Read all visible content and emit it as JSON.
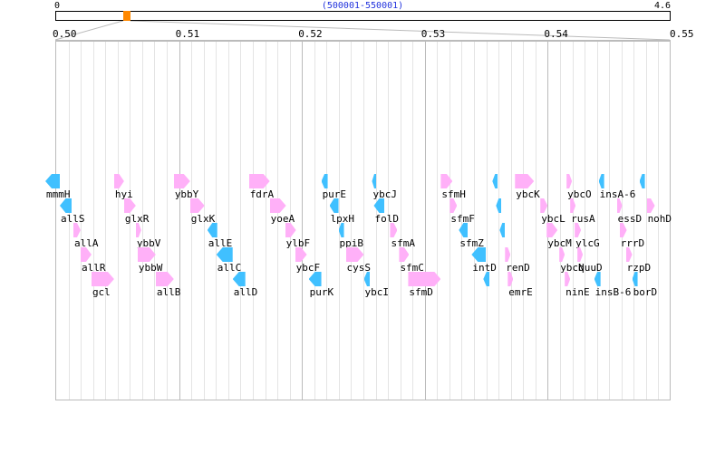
{
  "overview": {
    "start_label": "0",
    "end_label": "4.6",
    "range_label": "(500001-550001)",
    "genome_length_mb": 4.6,
    "view_start_bp": 500001,
    "view_end_bp": 550001
  },
  "scale": {
    "ticks": [
      "0.50",
      "0.51",
      "0.52",
      "0.53",
      "0.54",
      "0.55"
    ],
    "tick_values_mb": [
      0.5,
      0.51,
      0.52,
      0.53,
      0.54,
      0.55
    ]
  },
  "colors": {
    "forward": "#ffb0f8",
    "reverse": "#40c0ff",
    "marker": "#ff8800",
    "range_text": "#2233dd"
  },
  "genes": [
    {
      "label": "mmmH",
      "start": 499190,
      "end": 500368,
      "strand": "-",
      "row": 0
    },
    {
      "label": "allS",
      "start": 500368,
      "end": 501326,
      "strand": "-",
      "row": 1
    },
    {
      "label": "allA",
      "start": 501473,
      "end": 502062,
      "strand": "+",
      "row": 2
    },
    {
      "label": "allR",
      "start": 502062,
      "end": 502946,
      "strand": "+",
      "row": 3
    },
    {
      "label": "gcl",
      "start": 502946,
      "end": 504787,
      "strand": "+",
      "row": 4
    },
    {
      "label": "hyi",
      "start": 504787,
      "end": 505597,
      "strand": "+",
      "row": 0
    },
    {
      "label": "glxR",
      "start": 505597,
      "end": 506554,
      "strand": "+",
      "row": 1
    },
    {
      "label": "ybbV",
      "start": 506554,
      "end": 506996,
      "strand": "+",
      "row": 2
    },
    {
      "label": "ybbW",
      "start": 506701,
      "end": 508174,
      "strand": "+",
      "row": 3
    },
    {
      "label": "allB",
      "start": 508174,
      "end": 509647,
      "strand": "+",
      "row": 4
    },
    {
      "label": "ybbY",
      "start": 509647,
      "end": 510972,
      "strand": "+",
      "row": 0
    },
    {
      "label": "glxK",
      "start": 510972,
      "end": 512151,
      "strand": "+",
      "row": 1
    },
    {
      "label": "allE",
      "start": 512372,
      "end": 513182,
      "strand": "-",
      "row": 2
    },
    {
      "label": "allC",
      "start": 513108,
      "end": 514434,
      "strand": "-",
      "row": 3
    },
    {
      "label": "allD",
      "start": 514434,
      "end": 515464,
      "strand": "-",
      "row": 4
    },
    {
      "label": "fdrA",
      "start": 515759,
      "end": 517453,
      "strand": "+",
      "row": 0
    },
    {
      "label": "yoeA",
      "start": 517453,
      "end": 518778,
      "strand": "+",
      "row": 1
    },
    {
      "label": "ylbF",
      "start": 518705,
      "end": 519588,
      "strand": "+",
      "row": 2
    },
    {
      "label": "ybcF",
      "start": 519515,
      "end": 520472,
      "strand": "+",
      "row": 3
    },
    {
      "label": "purK",
      "start": 520619,
      "end": 521650,
      "strand": "-",
      "row": 4
    },
    {
      "label": "purE",
      "start": 521650,
      "end": 522166,
      "strand": "-",
      "row": 0
    },
    {
      "label": "lpxH",
      "start": 522313,
      "end": 523049,
      "strand": "-",
      "row": 1
    },
    {
      "label": "ppiB",
      "start": 523049,
      "end": 523491,
      "strand": "-",
      "row": 2
    },
    {
      "label": "cysS",
      "start": 523638,
      "end": 525111,
      "strand": "+",
      "row": 3
    },
    {
      "label": "ybcI",
      "start": 525111,
      "end": 525626,
      "strand": "-",
      "row": 4
    },
    {
      "label": "ybcJ",
      "start": 525774,
      "end": 526142,
      "strand": "-",
      "row": 0
    },
    {
      "label": "folD",
      "start": 525921,
      "end": 526805,
      "strand": "-",
      "row": 1
    },
    {
      "label": "sfmA",
      "start": 527247,
      "end": 527836,
      "strand": "+",
      "row": 2
    },
    {
      "label": "sfmC",
      "start": 527983,
      "end": 528793,
      "strand": "+",
      "row": 3
    },
    {
      "label": "sfmD",
      "start": 528719,
      "end": 531370,
      "strand": "+",
      "row": 4
    },
    {
      "label": "sfmH",
      "start": 531370,
      "end": 532327,
      "strand": "+",
      "row": 0
    },
    {
      "label": "sfmF",
      "start": 532107,
      "end": 532696,
      "strand": "+",
      "row": 1
    },
    {
      "label": "sfmZ",
      "start": 532843,
      "end": 533580,
      "strand": "-",
      "row": 2
    },
    {
      "label": "intD",
      "start": 533874,
      "end": 535053,
      "strand": "-",
      "row": 3
    },
    {
      "label": "",
      "start": 534833,
      "end": 535348,
      "strand": "-",
      "row": 4
    },
    {
      "label": "",
      "start": 535569,
      "end": 536011,
      "strand": "-",
      "row": 0
    },
    {
      "label": "",
      "start": 535864,
      "end": 536306,
      "strand": "-",
      "row": 1
    },
    {
      "label": "",
      "start": 536158,
      "end": 536600,
      "strand": "-",
      "row": 2
    },
    {
      "label": "renD",
      "start": 536600,
      "end": 537042,
      "strand": "+",
      "row": 3
    },
    {
      "label": "emrE",
      "start": 536821,
      "end": 537263,
      "strand": "+",
      "row": 4
    },
    {
      "label": "ybcK",
      "start": 537410,
      "end": 538956,
      "strand": "+",
      "row": 0
    },
    {
      "label": "ybcL",
      "start": 539471,
      "end": 540060,
      "strand": "+",
      "row": 1
    },
    {
      "label": "ybcM",
      "start": 539986,
      "end": 540870,
      "strand": "+",
      "row": 2
    },
    {
      "label": "ybcN",
      "start": 541017,
      "end": 541459,
      "strand": "+",
      "row": 3
    },
    {
      "label": "ninE",
      "start": 541459,
      "end": 541901,
      "strand": "+",
      "row": 4
    },
    {
      "label": "ybcO",
      "start": 541606,
      "end": 542048,
      "strand": "+",
      "row": 0
    },
    {
      "label": "rusA",
      "start": 541901,
      "end": 542343,
      "strand": "+",
      "row": 1
    },
    {
      "label": "ylcG",
      "start": 542269,
      "end": 542785,
      "strand": "+",
      "row": 2
    },
    {
      "label": "quuD",
      "start": 542490,
      "end": 542932,
      "strand": "+",
      "row": 3
    },
    {
      "label": "insB-6",
      "start": 543854,
      "end": 544370,
      "strand": "-",
      "row": 4
    },
    {
      "label": "insA-6",
      "start": 544222,
      "end": 544664,
      "strand": "-",
      "row": 0
    },
    {
      "label": "essD",
      "start": 545695,
      "end": 546137,
      "strand": "+",
      "row": 1
    },
    {
      "label": "rrrD",
      "start": 545916,
      "end": 546505,
      "strand": "+",
      "row": 2
    },
    {
      "label": "rzpD",
      "start": 546431,
      "end": 546946,
      "strand": "+",
      "row": 3
    },
    {
      "label": "borD",
      "start": 546946,
      "end": 547388,
      "strand": "-",
      "row": 4
    },
    {
      "label": "",
      "start": 547535,
      "end": 547977,
      "strand": "-",
      "row": 0
    },
    {
      "label": "nohD",
      "start": 548125,
      "end": 548788,
      "strand": "+",
      "row": 1
    }
  ]
}
